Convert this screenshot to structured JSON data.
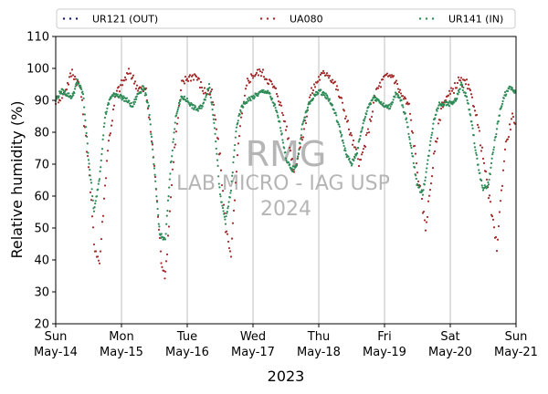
{
  "chart_data": {
    "type": "scatter",
    "xlabel": "2023",
    "ylabel": "Relative humidity (%)",
    "ylim": [
      20,
      110
    ],
    "yticks": [
      20,
      30,
      40,
      50,
      60,
      70,
      80,
      90,
      100,
      110
    ],
    "x_range_days": [
      "2023-05-14",
      "2023-05-21"
    ],
    "x_ticks": [
      {
        "day": "Sun",
        "date": "May-14"
      },
      {
        "day": "Mon",
        "date": "May-15"
      },
      {
        "day": "Tue",
        "date": "May-16"
      },
      {
        "day": "Wed",
        "date": "May-17"
      },
      {
        "day": "Thu",
        "date": "May-18"
      },
      {
        "day": "Fri",
        "date": "May-19"
      },
      {
        "day": "Sat",
        "date": "May-20"
      },
      {
        "day": "Sun",
        "date": "May-21"
      }
    ],
    "grid": "vertical at day boundaries",
    "legend_placement": "top",
    "series": [
      {
        "name": "UR121 (OUT)",
        "color": "#1a1a6e",
        "points": []
      },
      {
        "name": "UA080",
        "color": "#a52a2a",
        "points": [
          [
            "2023-05-14T00:00",
            90
          ],
          [
            "2023-05-14T03:00",
            92
          ],
          [
            "2023-05-14T06:00",
            99
          ],
          [
            "2023-05-14T09:00",
            94
          ],
          [
            "2023-05-14T12:00",
            70
          ],
          [
            "2023-05-14T14:00",
            45
          ],
          [
            "2023-05-14T16:00",
            39
          ],
          [
            "2023-05-14T19:00",
            75
          ],
          [
            "2023-05-14T22:00",
            92
          ],
          [
            "2023-05-15T00:00",
            95
          ],
          [
            "2023-05-15T03:00",
            99
          ],
          [
            "2023-05-15T06:00",
            94
          ],
          [
            "2023-05-15T09:00",
            93
          ],
          [
            "2023-05-15T12:00",
            70
          ],
          [
            "2023-05-15T14:30",
            40
          ],
          [
            "2023-05-15T16:00",
            35
          ],
          [
            "2023-05-15T19:00",
            72
          ],
          [
            "2023-05-15T22:00",
            95
          ],
          [
            "2023-05-16T00:00",
            97
          ],
          [
            "2023-05-16T03:00",
            98
          ],
          [
            "2023-05-16T06:00",
            93
          ],
          [
            "2023-05-16T09:00",
            92
          ],
          [
            "2023-05-16T12:00",
            72
          ],
          [
            "2023-05-16T14:00",
            50
          ],
          [
            "2023-05-16T16:00",
            42
          ],
          [
            "2023-05-16T19:00",
            80
          ],
          [
            "2023-05-16T22:00",
            96
          ],
          [
            "2023-05-17T00:00",
            98
          ],
          [
            "2023-05-17T03:00",
            99
          ],
          [
            "2023-05-17T06:00",
            96
          ],
          [
            "2023-05-17T09:00",
            92
          ],
          [
            "2023-05-17T12:00",
            82
          ],
          [
            "2023-05-17T15:00",
            68
          ],
          [
            "2023-05-17T18:00",
            78
          ],
          [
            "2023-05-17T21:00",
            92
          ],
          [
            "2023-05-18T00:00",
            97
          ],
          [
            "2023-05-18T03:00",
            99
          ],
          [
            "2023-05-18T06:00",
            95
          ],
          [
            "2023-05-18T09:00",
            88
          ],
          [
            "2023-05-18T12:00",
            78
          ],
          [
            "2023-05-18T15:00",
            70
          ],
          [
            "2023-05-18T18:00",
            80
          ],
          [
            "2023-05-18T21:00",
            93
          ],
          [
            "2023-05-19T00:00",
            97
          ],
          [
            "2023-05-19T03:00",
            98
          ],
          [
            "2023-05-19T06:00",
            92
          ],
          [
            "2023-05-19T09:00",
            88
          ],
          [
            "2023-05-19T12:00",
            68
          ],
          [
            "2023-05-19T15:00",
            50
          ],
          [
            "2023-05-19T18:00",
            72
          ],
          [
            "2023-05-19T21:00",
            89
          ],
          [
            "2023-05-20T00:00",
            92
          ],
          [
            "2023-05-20T03:00",
            96
          ],
          [
            "2023-05-20T06:00",
            95
          ],
          [
            "2023-05-20T09:00",
            88
          ],
          [
            "2023-05-20T12:00",
            72
          ],
          [
            "2023-05-20T15:00",
            55
          ],
          [
            "2023-05-20T17:00",
            44
          ],
          [
            "2023-05-20T20:00",
            75
          ],
          [
            "2023-05-20T23:00",
            86
          ],
          [
            "2023-05-21T00:00",
            80
          ]
        ]
      },
      {
        "name": "UR141 (IN)",
        "color": "#2e8b57",
        "points": [
          [
            "2023-05-14T00:00",
            90
          ],
          [
            "2023-05-14T02:00",
            93
          ],
          [
            "2023-05-14T04:00",
            92
          ],
          [
            "2023-05-14T06:00",
            91
          ],
          [
            "2023-05-14T08:00",
            96
          ],
          [
            "2023-05-14T10:00",
            92
          ],
          [
            "2023-05-14T12:00",
            72
          ],
          [
            "2023-05-14T14:00",
            55
          ],
          [
            "2023-05-14T16:00",
            66
          ],
          [
            "2023-05-14T18:00",
            85
          ],
          [
            "2023-05-14T20:00",
            91
          ],
          [
            "2023-05-14T22:00",
            92
          ],
          [
            "2023-05-15T00:00",
            91
          ],
          [
            "2023-05-15T02:00",
            90
          ],
          [
            "2023-05-15T04:00",
            88
          ],
          [
            "2023-05-15T06:00",
            92
          ],
          [
            "2023-05-15T08:00",
            94
          ],
          [
            "2023-05-15T10:00",
            88
          ],
          [
            "2023-05-15T12:00",
            68
          ],
          [
            "2023-05-15T14:00",
            48
          ],
          [
            "2023-05-15T16:00",
            46
          ],
          [
            "2023-05-15T18:00",
            70
          ],
          [
            "2023-05-15T20:00",
            86
          ],
          [
            "2023-05-15T22:00",
            91
          ],
          [
            "2023-05-16T00:00",
            90
          ],
          [
            "2023-05-16T02:00",
            88
          ],
          [
            "2023-05-16T04:00",
            87
          ],
          [
            "2023-05-16T06:00",
            89
          ],
          [
            "2023-05-16T08:00",
            95
          ],
          [
            "2023-05-16T10:00",
            82
          ],
          [
            "2023-05-16T12:00",
            60
          ],
          [
            "2023-05-16T14:00",
            52
          ],
          [
            "2023-05-16T16:00",
            62
          ],
          [
            "2023-05-16T18:00",
            82
          ],
          [
            "2023-05-16T20:00",
            88
          ],
          [
            "2023-05-16T22:00",
            90
          ],
          [
            "2023-05-17T00:00",
            91
          ],
          [
            "2023-05-17T02:00",
            92
          ],
          [
            "2023-05-17T04:00",
            93
          ],
          [
            "2023-05-17T06:00",
            92
          ],
          [
            "2023-05-17T08:00",
            88
          ],
          [
            "2023-05-17T10:00",
            82
          ],
          [
            "2023-05-17T12:00",
            72
          ],
          [
            "2023-05-17T14:00",
            68
          ],
          [
            "2023-05-17T16:00",
            70
          ],
          [
            "2023-05-17T18:00",
            82
          ],
          [
            "2023-05-17T20:00",
            88
          ],
          [
            "2023-05-17T22:00",
            91
          ],
          [
            "2023-05-18T00:00",
            93
          ],
          [
            "2023-05-18T02:00",
            92
          ],
          [
            "2023-05-18T04:00",
            90
          ],
          [
            "2023-05-18T06:00",
            86
          ],
          [
            "2023-05-18T08:00",
            80
          ],
          [
            "2023-05-18T10:00",
            73
          ],
          [
            "2023-05-18T12:00",
            70
          ],
          [
            "2023-05-18T14:00",
            74
          ],
          [
            "2023-05-18T16:00",
            82
          ],
          [
            "2023-05-18T18:00",
            88
          ],
          [
            "2023-05-18T20:00",
            91
          ],
          [
            "2023-05-18T22:00",
            90
          ],
          [
            "2023-05-19T00:00",
            88
          ],
          [
            "2023-05-19T02:00",
            88
          ],
          [
            "2023-05-19T04:00",
            92
          ],
          [
            "2023-05-19T06:00",
            90
          ],
          [
            "2023-05-19T08:00",
            84
          ],
          [
            "2023-05-19T10:00",
            74
          ],
          [
            "2023-05-19T12:00",
            63
          ],
          [
            "2023-05-19T14:00",
            61
          ],
          [
            "2023-05-19T16:00",
            72
          ],
          [
            "2023-05-19T18:00",
            84
          ],
          [
            "2023-05-19T20:00",
            89
          ],
          [
            "2023-05-19T22:00",
            89
          ],
          [
            "2023-05-20T00:00",
            89
          ],
          [
            "2023-05-20T02:00",
            90
          ],
          [
            "2023-05-20T04:00",
            95
          ],
          [
            "2023-05-20T06:00",
            91
          ],
          [
            "2023-05-20T08:00",
            82
          ],
          [
            "2023-05-20T10:00",
            70
          ],
          [
            "2023-05-20T12:00",
            62
          ],
          [
            "2023-05-20T14:00",
            64
          ],
          [
            "2023-05-20T16:00",
            76
          ],
          [
            "2023-05-20T18:00",
            86
          ],
          [
            "2023-05-20T20:00",
            92
          ],
          [
            "2023-05-20T22:00",
            94
          ],
          [
            "2023-05-21T00:00",
            92
          ]
        ]
      }
    ]
  },
  "watermark": {
    "line1": "RMG",
    "line2": "LAB MICRO - IAG USP",
    "line3": "2024"
  }
}
